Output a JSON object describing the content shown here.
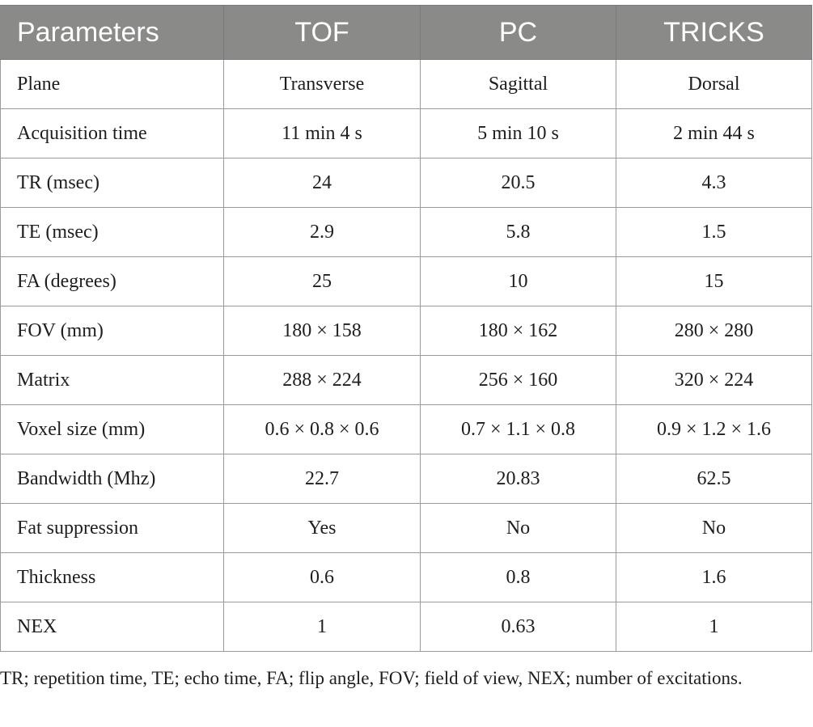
{
  "table": {
    "headers": [
      "Parameters",
      "TOF",
      "PC",
      "TRICKS"
    ],
    "rows": [
      [
        "Plane",
        "Transverse",
        "Sagittal",
        "Dorsal"
      ],
      [
        "Acquisition time",
        "11 min 4 s",
        "5 min 10 s",
        "2 min 44 s"
      ],
      [
        "TR (msec)",
        "24",
        "20.5",
        "4.3"
      ],
      [
        "TE (msec)",
        "2.9",
        "5.8",
        "1.5"
      ],
      [
        "FA (degrees)",
        "25",
        "10",
        "15"
      ],
      [
        "FOV (mm)",
        "180 × 158",
        "180 × 162",
        "280 × 280"
      ],
      [
        "Matrix",
        "288 × 224",
        "256 × 160",
        "320 × 224"
      ],
      [
        "Voxel size (mm)",
        "0.6 × 0.8 × 0.6",
        "0.7 × 1.1 × 0.8",
        "0.9 × 1.2 × 1.6"
      ],
      [
        "Bandwidth (Mhz)",
        "22.7",
        "20.83",
        "62.5"
      ],
      [
        "Fat suppression",
        "Yes",
        "No",
        "No"
      ],
      [
        "Thickness",
        "0.6",
        "0.8",
        "1.6"
      ],
      [
        "NEX",
        "1",
        "0.63",
        "1"
      ]
    ]
  },
  "footnote": "TR; repetition time, TE; echo time, FA; flip angle, FOV; field of view, NEX; number of excitations.",
  "colors": {
    "header_bg": "#8a8a89",
    "header_text": "#ffffff",
    "border": "#9a9a9a",
    "text": "#1e1e1e"
  }
}
